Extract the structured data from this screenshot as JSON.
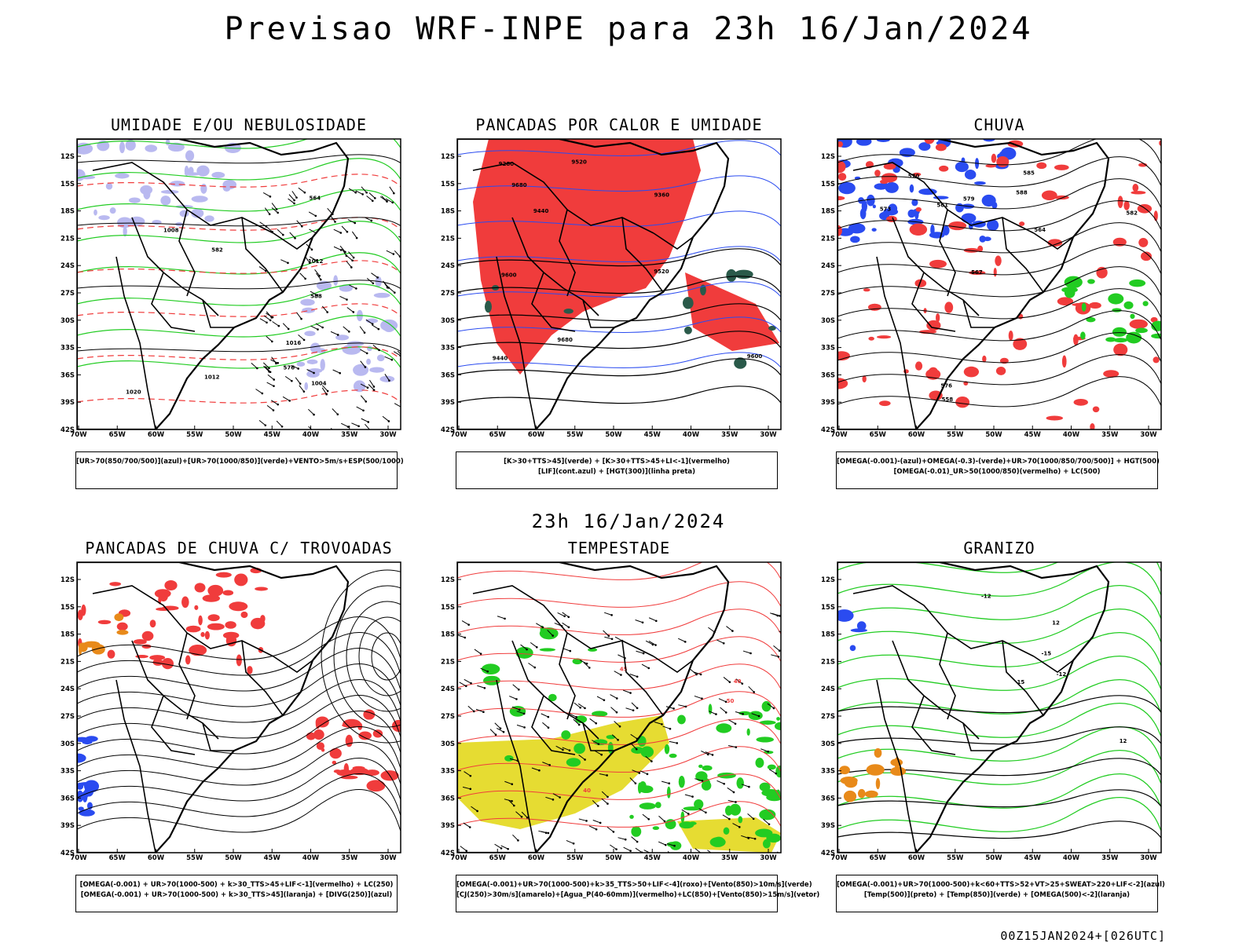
{
  "header": {
    "title": "Previsao WRF-INPE  para 23h 16/Jan/2024"
  },
  "middle": {
    "title": "23h 16/Jan/2024"
  },
  "footer": {
    "run": "00Z15JAN2024+[026UTC]"
  },
  "axes": {
    "lat_labels": [
      "12S",
      "15S",
      "18S",
      "21S",
      "24S",
      "27S",
      "30S",
      "33S",
      "36S",
      "39S",
      "42S"
    ],
    "lon_labels": [
      "70W",
      "65W",
      "60W",
      "55W",
      "50W",
      "45W",
      "40W",
      "35W",
      "30W"
    ]
  },
  "panels": [
    {
      "id": "umidade",
      "title": "UMIDADE E/OU NEBULOSIDADE",
      "legend": [
        "[UR>70(850/700/500)](azul)+[UR>70(1000/850)](verde)+VENTO>5m/s+ESP(500/1000)"
      ],
      "contour_labels": [
        "1012",
        "1016",
        "1020",
        "1004",
        "1008",
        "1012",
        "576",
        "582",
        "564",
        "588"
      ]
    },
    {
      "id": "pancadas-calor",
      "title": "PANCADAS POR CALOR E UMIDADE",
      "legend": [
        "[K>30+TTS>45](verde) + [K>30+TTS>45+LI<-1](vermelho)",
        "[LIF](cont.azul) + [HGT(300)](linha preta)"
      ],
      "contour_labels": [
        "9680",
        "9600",
        "9520",
        "9440",
        "9360",
        "9280",
        "9680",
        "9600",
        "9520",
        "9440"
      ]
    },
    {
      "id": "chuva",
      "title": "CHUVA",
      "legend": [
        "[OMEGA(-0.001)-(azul)+OMEGA(-0.3)-(verde)+UR>70(1000/850/700/500)] + HGT(500)",
        "[OMEGA(-0.01)_UR>50(1000/850)(vermelho) + LC(500)"
      ],
      "contour_labels": [
        "588",
        "585",
        "582",
        "579",
        "576",
        "573",
        "570",
        "567",
        "564",
        "561",
        "558"
      ]
    },
    {
      "id": "trovoadas",
      "title": "PANCADAS DE CHUVA C/ TROVOADAS",
      "legend": [
        "[OMEGA(-0.001) + UR>70(1000-500) + k>30_TTS>45+LIF<-1](vermelho) + LC(250)",
        "[OMEGA(-0.001) + UR>70(1000-500) + k>30_TTS>45](laranja) + [DIVG(250)](azul)"
      ],
      "contour_labels": []
    },
    {
      "id": "tempestade",
      "title": "TEMPESTADE",
      "legend": [
        "[OMEGA(-0.001)+UR>70(1000-500)+k>35_TTS>50+LIF<-4](roxo)+[Vento(850)>10m/s](verde)",
        "[CJ(250)>30m/s](amarelo)+[Agua_P(40-60mm)](vermelho)+LC(850)+[Vento(850)>15m/s](vetor)"
      ],
      "contour_labels": [
        "40",
        "45",
        "50",
        "40"
      ]
    },
    {
      "id": "granizo",
      "title": "GRANIZO",
      "legend": [
        "[OMEGA(-0.001)+UR>70(1000-500)+k<60+TTS>52+VT>25+SWEAT>220+LIF<-2](azul)",
        "[Temp(500)](preto) + [Temp(850)](verde) + [OMEGA(500)<-2](laranja)"
      ],
      "contour_labels": [
        "-12",
        "-15",
        "-12",
        "12",
        "15",
        "12"
      ]
    }
  ],
  "colors": {
    "blue_humidity": "#b9b9f0",
    "green": "#22cc22",
    "red": "#f03c3c",
    "yellow": "#e6dc32",
    "blue": "#2a4bf0",
    "orange": "#e88a1a",
    "dark_green": "#2a5a4a"
  }
}
